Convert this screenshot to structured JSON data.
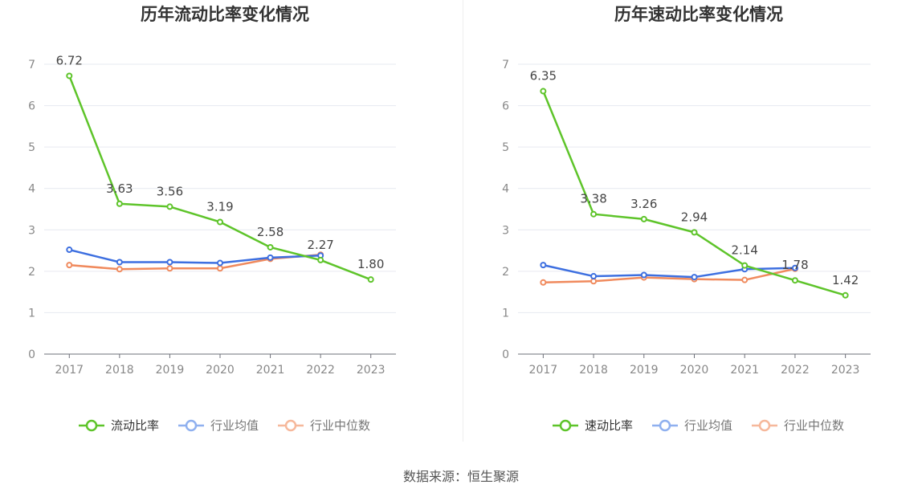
{
  "chart_data": [
    {
      "type": "line",
      "title": "历年流动比率变化情况",
      "categories": [
        "2017",
        "2018",
        "2019",
        "2020",
        "2021",
        "2022",
        "2023"
      ],
      "ylim": [
        0,
        7
      ],
      "yticks": [
        "0",
        "1",
        "2",
        "3",
        "4",
        "5",
        "6",
        "7"
      ],
      "grid": true,
      "legend_position": "bottom",
      "series": [
        {
          "name": "流动比率",
          "color": "#5ec42a",
          "values": [
            6.72,
            3.63,
            3.56,
            3.19,
            2.58,
            2.27,
            1.8
          ],
          "labels": [
            "6.72",
            "3.63",
            "3.56",
            "3.19",
            "2.58",
            "2.27",
            "1.80"
          ]
        },
        {
          "name": "行业均值",
          "color": "#3d6fe0",
          "values": [
            2.52,
            2.22,
            2.22,
            2.2,
            2.33,
            2.38,
            null
          ]
        },
        {
          "name": "行业中位数",
          "color": "#f08a5d",
          "values": [
            2.15,
            2.05,
            2.07,
            2.07,
            2.3,
            2.4,
            null
          ]
        }
      ]
    },
    {
      "type": "line",
      "title": "历年速动比率变化情况",
      "categories": [
        "2017",
        "2018",
        "2019",
        "2020",
        "2021",
        "2022",
        "2023"
      ],
      "ylim": [
        0,
        7
      ],
      "yticks": [
        "0",
        "1",
        "2",
        "3",
        "4",
        "5",
        "6",
        "7"
      ],
      "grid": true,
      "legend_position": "bottom",
      "series": [
        {
          "name": "速动比率",
          "color": "#5ec42a",
          "values": [
            6.35,
            3.38,
            3.26,
            2.94,
            2.14,
            1.78,
            1.42
          ],
          "labels": [
            "6.35",
            "3.38",
            "3.26",
            "2.94",
            "2.14",
            "1.78",
            "1.42"
          ]
        },
        {
          "name": "行业均值",
          "color": "#3d6fe0",
          "values": [
            2.15,
            1.88,
            1.91,
            1.86,
            2.05,
            2.08,
            null
          ]
        },
        {
          "name": "行业中位数",
          "color": "#f08a5d",
          "values": [
            1.73,
            1.76,
            1.85,
            1.81,
            1.79,
            2.06,
            null
          ]
        }
      ]
    }
  ],
  "footer": {
    "source": "数据来源：恒生聚源"
  }
}
